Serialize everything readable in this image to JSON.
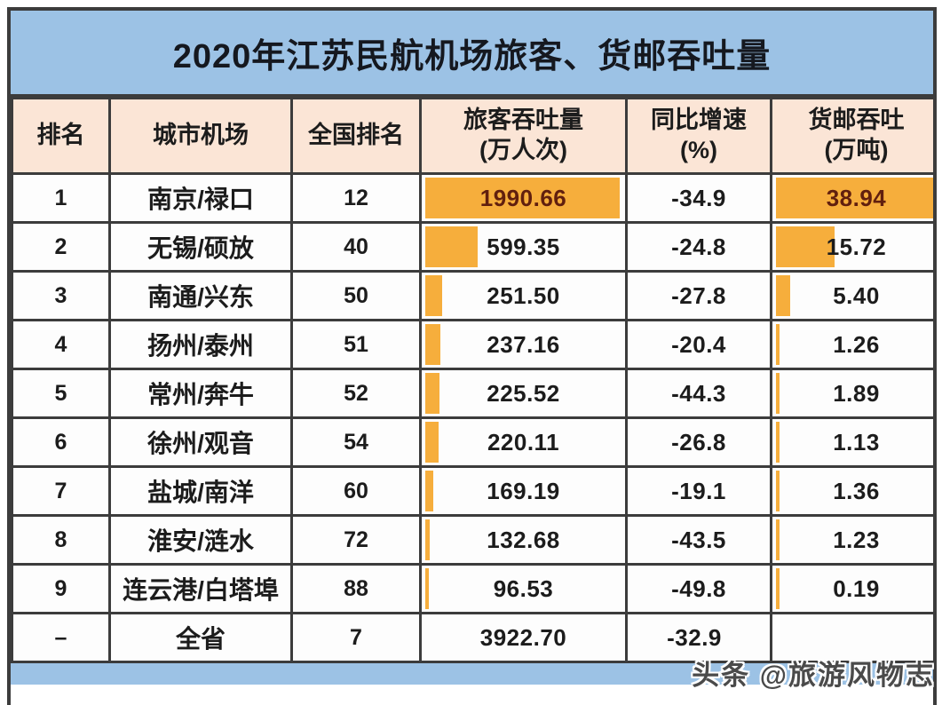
{
  "title": "2020年江苏民航机场旅客、货邮吞吐量",
  "watermark": "头条 @旅游风物志",
  "colors": {
    "title_bg": "#9CC2E5",
    "header_bg": "#FBE5D6",
    "bar_orange": "#F6AE3C",
    "bar_text_dark": "#611F0E",
    "border": "#3C3C3C",
    "bottom_strip": "#9CC2E5"
  },
  "chart_data": {
    "type": "table",
    "title": "2020年江苏民航机场旅客、货邮吞吐量",
    "columns": [
      {
        "label": "排名",
        "sub": ""
      },
      {
        "label": "城市机场",
        "sub": ""
      },
      {
        "label": "全国排名",
        "sub": ""
      },
      {
        "label": "旅客吞吐量",
        "sub": "(万人次)"
      },
      {
        "label": "同比增速",
        "sub": "(%)"
      },
      {
        "label": "货邮吞吐",
        "sub": "(万吨)"
      }
    ],
    "bar_max": {
      "passenger": 1990.66,
      "cargo": 38.94
    },
    "rows": [
      {
        "rank": "1",
        "airport": "南京/禄口",
        "national_rank": "12",
        "passenger": "1990.66",
        "growth": "-34.9",
        "cargo": "38.94",
        "show_bars": true,
        "dark_text": true,
        "total": false
      },
      {
        "rank": "2",
        "airport": "无锡/硕放",
        "national_rank": "40",
        "passenger": "599.35",
        "growth": "-24.8",
        "cargo": "15.72",
        "show_bars": true,
        "dark_text": false,
        "total": false
      },
      {
        "rank": "3",
        "airport": "南通/兴东",
        "national_rank": "50",
        "passenger": "251.50",
        "growth": "-27.8",
        "cargo": "5.40",
        "show_bars": true,
        "dark_text": false,
        "total": false
      },
      {
        "rank": "4",
        "airport": "扬州/泰州",
        "national_rank": "51",
        "passenger": "237.16",
        "growth": "-20.4",
        "cargo": "1.26",
        "show_bars": true,
        "dark_text": false,
        "total": false
      },
      {
        "rank": "5",
        "airport": "常州/奔牛",
        "national_rank": "52",
        "passenger": "225.52",
        "growth": "-44.3",
        "cargo": "1.89",
        "show_bars": true,
        "dark_text": false,
        "total": false
      },
      {
        "rank": "6",
        "airport": "徐州/观音",
        "national_rank": "54",
        "passenger": "220.11",
        "growth": "-26.8",
        "cargo": "1.13",
        "show_bars": true,
        "dark_text": false,
        "total": false
      },
      {
        "rank": "7",
        "airport": "盐城/南洋",
        "national_rank": "60",
        "passenger": "169.19",
        "growth": "-19.1",
        "cargo": "1.36",
        "show_bars": true,
        "dark_text": false,
        "total": false
      },
      {
        "rank": "8",
        "airport": "淮安/涟水",
        "national_rank": "72",
        "passenger": "132.68",
        "growth": "-43.5",
        "cargo": "1.23",
        "show_bars": true,
        "dark_text": false,
        "total": false
      },
      {
        "rank": "9",
        "airport": "连云港/白塔埠",
        "national_rank": "88",
        "passenger": "96.53",
        "growth": "-49.8",
        "cargo": "0.19",
        "show_bars": true,
        "dark_text": false,
        "total": false
      },
      {
        "rank": "–",
        "airport": "全省",
        "national_rank": "7",
        "passenger": "3922.70",
        "growth": "-32.9",
        "cargo": "",
        "show_bars": false,
        "dark_text": false,
        "total": true
      }
    ]
  }
}
